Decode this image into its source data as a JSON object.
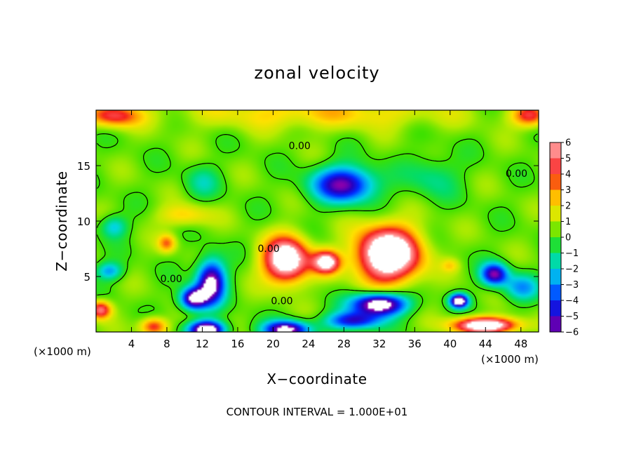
{
  "chart_data": {
    "type": "heatmap",
    "title": "zonal velocity",
    "xlabel": "X−coordinate",
    "ylabel": "Z−coordinate",
    "x_unit_label": "(×1000 m)",
    "y_unit_label": "(×1000 m)",
    "xlim": [
      0,
      50
    ],
    "ylim": [
      0,
      20
    ],
    "x_ticks": [
      4,
      8,
      12,
      16,
      20,
      24,
      28,
      32,
      36,
      40,
      44,
      48
    ],
    "x_tick_labels": [
      "4",
      "8",
      "12",
      "16",
      "20",
      "24",
      "28",
      "32",
      "36",
      "40",
      "44",
      "48"
    ],
    "y_ticks": [
      5,
      10,
      15
    ],
    "y_tick_labels": [
      "5",
      "10",
      "15"
    ],
    "colorbar": {
      "min": -6,
      "max": 6,
      "ticks": [
        6,
        5,
        4,
        3,
        2,
        1,
        0,
        -1,
        -2,
        -3,
        -4,
        -5,
        -6
      ],
      "tick_labels": [
        "6",
        "5",
        "4",
        "3",
        "2",
        "1",
        "0",
        "−1",
        "−2",
        "−3",
        "−4",
        "−5",
        "−6"
      ],
      "out_of_range_color": "#ffffff"
    },
    "background_value": 0.3,
    "features": [
      {
        "x": 2,
        "z": 19.5,
        "u": 4,
        "sx": 3,
        "sz": 1
      },
      {
        "x": 25,
        "z": 19.8,
        "u": 2,
        "sx": 15,
        "sz": 1.5
      },
      {
        "x": 49,
        "z": 19.5,
        "u": 4,
        "sx": 2,
        "sz": 1
      },
      {
        "x": 28,
        "z": 13.3,
        "u": -6,
        "sx": 3.5,
        "sz": 1.6
      },
      {
        "x": 12,
        "z": 13.5,
        "u": -1.5,
        "sx": 2,
        "sz": 1.5
      },
      {
        "x": 38,
        "z": 14,
        "u": -1.5,
        "sx": 3,
        "sz": 2
      },
      {
        "x": 2,
        "z": 9.5,
        "u": -2.5,
        "sx": 1.5,
        "sz": 1
      },
      {
        "x": 1.5,
        "z": 5.5,
        "u": -3,
        "sx": 1.5,
        "sz": 0.8
      },
      {
        "x": 13,
        "z": 4.5,
        "u": -7,
        "sx": 1.6,
        "sz": 2
      },
      {
        "x": 11,
        "z": 3,
        "u": -7,
        "sx": 1.5,
        "sz": 1
      },
      {
        "x": 21.5,
        "z": 6.5,
        "u": 8,
        "sx": 2.5,
        "sz": 2
      },
      {
        "x": 26,
        "z": 6.3,
        "u": 6.5,
        "sx": 1.5,
        "sz": 1
      },
      {
        "x": 33,
        "z": 7,
        "u": 9,
        "sx": 3.5,
        "sz": 2.4
      },
      {
        "x": 32,
        "z": 2.5,
        "u": -8,
        "sx": 3,
        "sz": 1
      },
      {
        "x": 41,
        "z": 2.8,
        "u": -8,
        "sx": 1,
        "sz": 0.6
      },
      {
        "x": 45,
        "z": 5.2,
        "u": -6,
        "sx": 1.5,
        "sz": 1
      },
      {
        "x": 48,
        "z": 4,
        "u": -3,
        "sx": 2,
        "sz": 1.2
      },
      {
        "x": 12.5,
        "z": 0.2,
        "u": -8,
        "sx": 2,
        "sz": 0.8
      },
      {
        "x": 21.5,
        "z": 0.2,
        "u": -7,
        "sx": 2.5,
        "sz": 0.8
      },
      {
        "x": 29,
        "z": 1,
        "u": -5,
        "sx": 3,
        "sz": 0.8
      },
      {
        "x": 6.5,
        "z": 0.5,
        "u": 4,
        "sx": 1.5,
        "sz": 0.8
      },
      {
        "x": 44,
        "z": 0.6,
        "u": 8,
        "sx": 3.5,
        "sz": 0.7
      },
      {
        "x": 0.5,
        "z": 2,
        "u": 5,
        "sx": 1.2,
        "sz": 0.8
      },
      {
        "x": 8,
        "z": 8,
        "u": 3,
        "sx": 1,
        "sz": 0.8
      },
      {
        "x": 10,
        "z": 10.5,
        "u": 2,
        "sx": 3,
        "sz": 1
      },
      {
        "x": 40,
        "z": 6,
        "u": 1.5,
        "sx": 1,
        "sz": 0.6
      }
    ],
    "contour_labels": [
      {
        "text": "0.00",
        "x": 23,
        "z": 16.5
      },
      {
        "text": "0.00",
        "x": 47.5,
        "z": 14
      },
      {
        "text": "0.00",
        "x": 19.5,
        "z": 7.2
      },
      {
        "text": "0.00",
        "x": 8.5,
        "z": 4.5
      },
      {
        "text": "0.00",
        "x": 21,
        "z": 2.5
      }
    ]
  },
  "footer": {
    "contour_interval": "CONTOUR INTERVAL = 1.000E+01"
  }
}
